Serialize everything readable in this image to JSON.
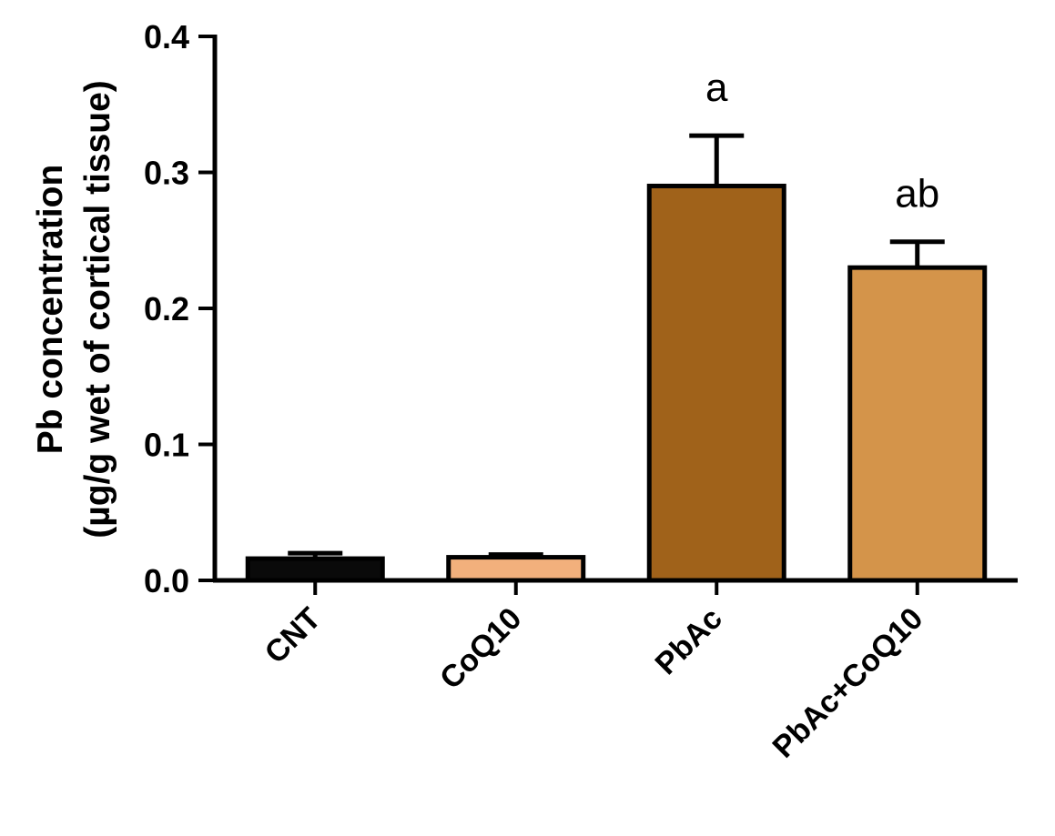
{
  "chart_data": {
    "type": "bar",
    "title": "",
    "xlabel": "",
    "ylabel_lines": [
      "Pb concentration",
      "(µg/g wet of cortical tissue)"
    ],
    "ylim": [
      0,
      0.4
    ],
    "yticks": [
      0.0,
      0.1,
      0.2,
      0.3,
      0.4
    ],
    "ytick_labels": [
      "0.0",
      "0.1",
      "0.2",
      "0.3",
      "0.4"
    ],
    "categories": [
      "CNT",
      "CoQ10",
      "PbAc",
      "PbAc+CoQ10"
    ],
    "values": [
      0.016,
      0.017,
      0.29,
      0.23
    ],
    "errors": [
      0.004,
      0.002,
      0.037,
      0.019
    ],
    "annotations": [
      "",
      "",
      "a",
      "ab"
    ],
    "colors": [
      "#0a0a0a",
      "#f2b07c",
      "#a0621a",
      "#d4944a"
    ],
    "grid": false,
    "legend": "none"
  }
}
